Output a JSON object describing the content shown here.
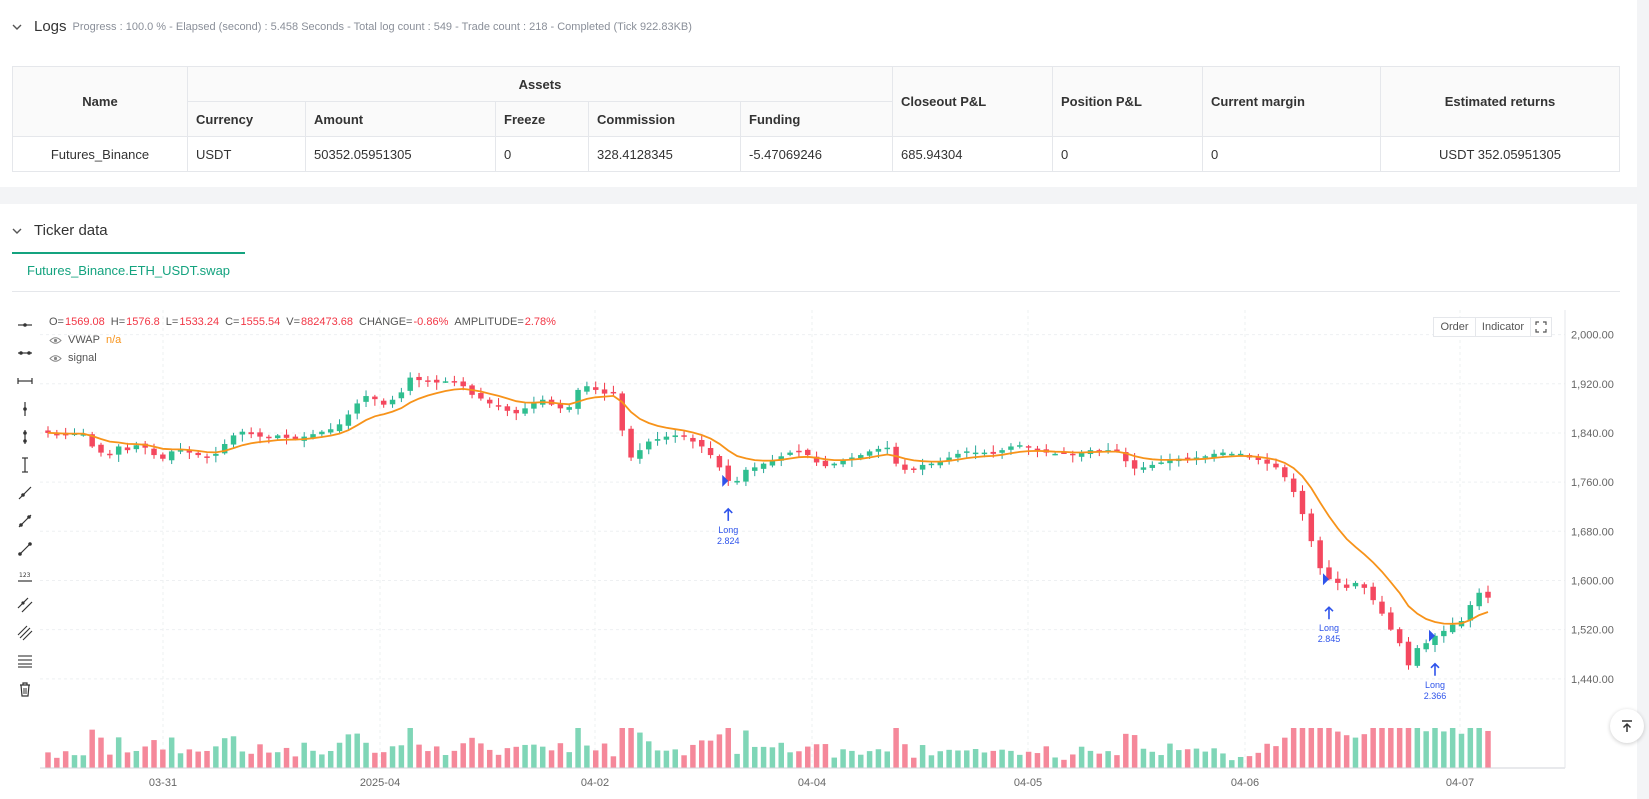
{
  "logs": {
    "title": "Logs",
    "summary": "Progress : 100.0 % - Elapsed (second) : 5.458  Seconds - Total log count : 549 - Trade count : 218 - Completed (Tick 922.83KB)"
  },
  "assets_table": {
    "group_header": "Assets",
    "headers": {
      "name": "Name",
      "currency": "Currency",
      "amount": "Amount",
      "freeze": "Freeze",
      "commission": "Commission",
      "funding": "Funding",
      "closeout": "Closeout P&L",
      "position": "Position P&L",
      "margin": "Current margin",
      "returns": "Estimated returns"
    },
    "row": {
      "name": "Futures_Binance",
      "currency": "USDT",
      "amount": "50352.05951305",
      "freeze": "0",
      "commission": "328.4128345",
      "funding": "-5.47069246",
      "closeout": "685.94304",
      "position": "0",
      "margin": "0",
      "returns": "USDT 352.05951305"
    }
  },
  "ticker": {
    "title": "Ticker data",
    "tab": "Futures_Binance.ETH_USDT.swap",
    "buttons": {
      "order": "Order",
      "indicator": "Indicator"
    },
    "ohlc": {
      "o_label": "O=",
      "o": "1569.08",
      "h_label": "H=",
      "h": "1576.8",
      "l_label": "L=",
      "l": "1533.24",
      "c_label": "C=",
      "c": "1555.54",
      "v_label": "V=",
      "v": "882473.68",
      "change_label": "CHANGE=",
      "change": "-0.86%",
      "amp_label": "AMPLITUDE=",
      "amp": "2.78%"
    },
    "vwap_label": "VWAP",
    "vwap_value": "n/a",
    "signal_label": "signal"
  },
  "chart_data": {
    "type": "candlestick",
    "y_ticks": [
      "2,000.00",
      "1,920.00",
      "1,840.00",
      "1,760.00",
      "1,680.00",
      "1,600.00",
      "1,520.00",
      "1,440.00"
    ],
    "x_ticks": [
      "03-31",
      "2025-04",
      "04-02",
      "04-04",
      "04-05",
      "04-06",
      "04-07"
    ],
    "ylim": [
      1360,
      2040
    ],
    "closes": [
      1840,
      1838,
      1836,
      1839,
      1838,
      1818,
      1808,
      1806,
      1818,
      1812,
      1820,
      1816,
      1804,
      1798,
      1810,
      1812,
      1808,
      1804,
      1800,
      1806,
      1822,
      1836,
      1842,
      1838,
      1834,
      1833,
      1836,
      1832,
      1830,
      1834,
      1838,
      1842,
      1846,
      1854,
      1870,
      1888,
      1900,
      1895,
      1886,
      1894,
      1906,
      1930,
      1926,
      1924,
      1922,
      1924,
      1922,
      1916,
      1902,
      1896,
      1888,
      1884,
      1876,
      1872,
      1880,
      1888,
      1894,
      1886,
      1880,
      1882,
      1910,
      1916,
      1910,
      1904,
      1906,
      1844,
      1800,
      1812,
      1826,
      1830,
      1834,
      1836,
      1834,
      1826,
      1818,
      1804,
      1784,
      1762,
      1762,
      1780,
      1784,
      1790,
      1796,
      1802,
      1808,
      1810,
      1804,
      1792,
      1786,
      1790,
      1796,
      1800,
      1804,
      1810,
      1814,
      1816,
      1790,
      1780,
      1782,
      1788,
      1790,
      1794,
      1800,
      1806,
      1810,
      1808,
      1808,
      1806,
      1812,
      1818,
      1820,
      1816,
      1812,
      1808,
      1806,
      1808,
      1804,
      1808,
      1812,
      1810,
      1812,
      1810,
      1794,
      1782,
      1784,
      1788,
      1792,
      1796,
      1798,
      1796,
      1800,
      1802,
      1806,
      1808,
      1806,
      1806,
      1800,
      1796,
      1790,
      1784,
      1768,
      1744,
      1708,
      1664,
      1620,
      1602,
      1596,
      1588,
      1596,
      1588,
      1568,
      1546,
      1520,
      1498,
      1462,
      1490,
      1498,
      1510,
      1518,
      1528,
      1534,
      1560,
      1580,
      1572
    ],
    "buy_signals": [
      {
        "label": "Long",
        "value": "2.824"
      },
      {
        "label": "Long",
        "value": "2.845"
      },
      {
        "label": "Long",
        "value": "2.366"
      }
    ]
  }
}
